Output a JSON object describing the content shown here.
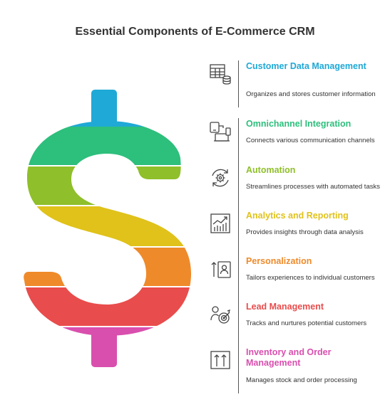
{
  "title": "Essential Components of E-Commerce CRM",
  "components": [
    {
      "heading": "Customer Data Management",
      "description": "Organizes and stores customer information",
      "color": "#1fa9d6",
      "icon": "database-table-icon"
    },
    {
      "heading": "Omnichannel Integration",
      "description": "Connects various communication channels",
      "color": "#2dbf7c",
      "icon": "devices-icon"
    },
    {
      "heading": "Automation",
      "description": "Streamlines processes with automated tasks",
      "color": "#8fbf2a",
      "icon": "gear-cycle-icon"
    },
    {
      "heading": "Analytics and Reporting",
      "description": "Provides insights through data analysis",
      "color": "#e0c21a",
      "icon": "bar-chart-icon"
    },
    {
      "heading": "Personalization",
      "description": "Tailors experiences to individual customers",
      "color": "#ef8a2a",
      "icon": "user-profile-icon"
    },
    {
      "heading": "Lead Management",
      "description": "Tracks and nurtures potential customers",
      "color": "#e94c4c",
      "icon": "person-target-icon"
    },
    {
      "heading": "Inventory and Order Management",
      "description": "Manages stock and order processing",
      "color": "#d94fae",
      "icon": "inventory-arrows-icon"
    }
  ],
  "dollar_sign": {
    "stripe_colors": [
      "#1fa9d6",
      "#2dbf7c",
      "#8fbf2a",
      "#e0c21a",
      "#ef8a2a",
      "#e94c4c",
      "#d94fae"
    ]
  }
}
